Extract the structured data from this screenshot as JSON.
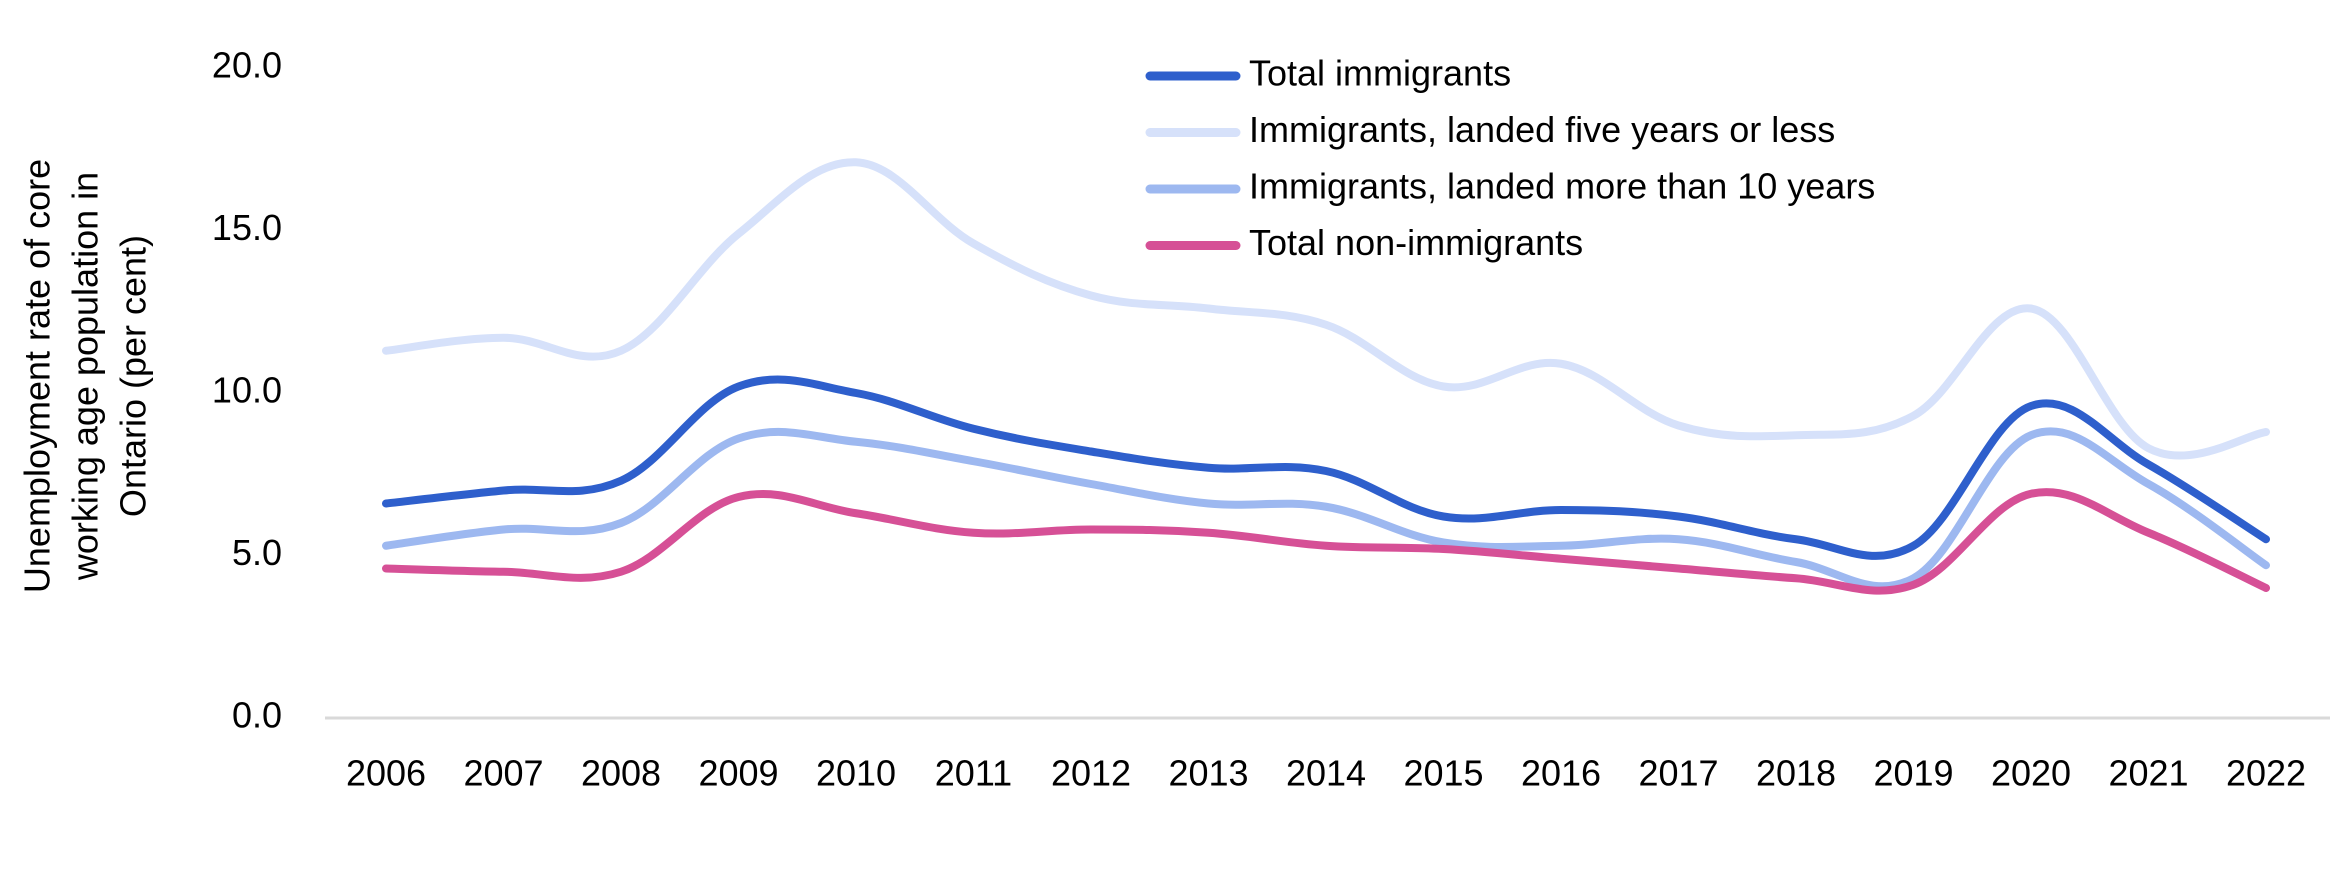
{
  "chart_data": {
    "type": "line",
    "title": "",
    "xlabel": "",
    "ylabel_lines": [
      "Unemployment rate of core",
      "working age population in",
      "Ontario (per cent)"
    ],
    "ylim": [
      0,
      20
    ],
    "yticks": [
      "0.0",
      "5.0",
      "10.0",
      "15.0",
      "20.0"
    ],
    "categories": [
      "2006",
      "2007",
      "2008",
      "2009",
      "2010",
      "2011",
      "2012",
      "2013",
      "2014",
      "2015",
      "2016",
      "2017",
      "2018",
      "2019",
      "2020",
      "2021",
      "2022"
    ],
    "grid": false,
    "legend_position": "top-center",
    "series": [
      {
        "name": "Total immigrants",
        "color": "#2e5fcc",
        "values": [
          6.6,
          7.0,
          7.3,
          10.2,
          10.0,
          8.9,
          8.2,
          7.7,
          7.6,
          6.2,
          6.4,
          6.2,
          5.5,
          5.3,
          9.6,
          7.8,
          5.5
        ]
      },
      {
        "name": "Immigrants, landed five years or less",
        "color": "#d6e1fa",
        "values": [
          11.3,
          11.7,
          11.3,
          14.9,
          17.1,
          14.6,
          13.0,
          12.6,
          12.1,
          10.2,
          10.9,
          9.0,
          8.7,
          9.3,
          12.6,
          8.3,
          8.8
        ]
      },
      {
        "name": "Immigrants, landed more than 10 years",
        "color": "#9db8f0",
        "values": [
          5.3,
          5.8,
          6.0,
          8.6,
          8.5,
          7.9,
          7.2,
          6.6,
          6.5,
          5.4,
          5.3,
          5.5,
          4.8,
          4.3,
          8.7,
          7.2,
          4.7
        ]
      },
      {
        "name": "Total non-immigrants",
        "color": "#d65096",
        "values": [
          4.6,
          4.5,
          4.5,
          6.8,
          6.3,
          5.7,
          5.8,
          5.7,
          5.3,
          5.2,
          4.9,
          4.6,
          4.3,
          4.1,
          6.9,
          5.7,
          4.0
        ]
      }
    ]
  }
}
